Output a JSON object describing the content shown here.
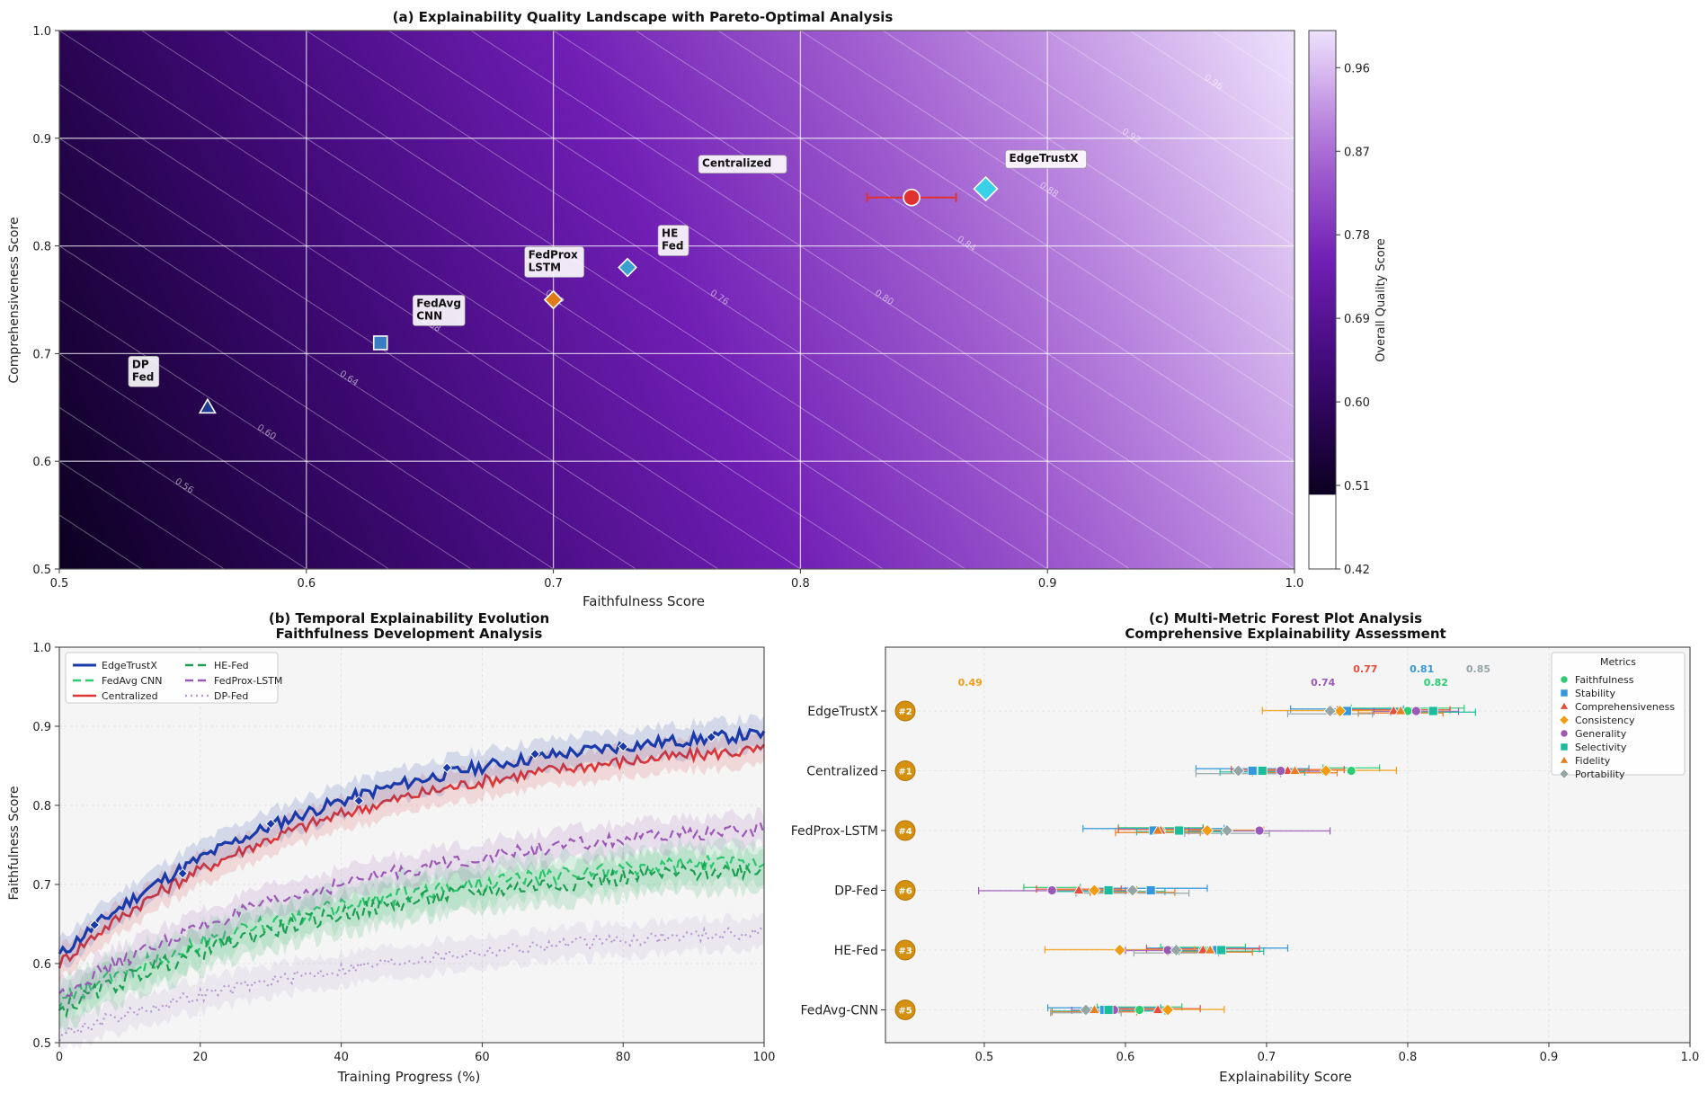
{
  "chart_data": [
    {
      "type": "heatmap",
      "title": "(a) Explainability Quality Landscape with Pareto-Optimal Analysis",
      "xlabel": "Faithfulness Score",
      "ylabel": "Comprehensiveness Score",
      "xlim": [
        0.5,
        1.0
      ],
      "ylim": [
        0.5,
        1.0
      ],
      "xticks": [
        0.5,
        0.6,
        0.7,
        0.8,
        0.9,
        1.0
      ],
      "yticks": [
        0.5,
        0.6,
        0.7,
        0.8,
        0.9,
        1.0
      ],
      "grid": true,
      "colorbar": {
        "label": "Overall Quality Score",
        "ticks": [
          0.42,
          0.51,
          0.6,
          0.69,
          0.78,
          0.87,
          0.96
        ],
        "min": 0.42,
        "max": 1.0,
        "shaded_min": 0.5
      },
      "contour_labels": [
        "0.56",
        "0.60",
        "0.64",
        "0.68",
        "0.72",
        "0.76",
        "0.80",
        "0.84",
        "0.88",
        "0.92",
        "0.96"
      ],
      "points": [
        {
          "label": "DP\nFed",
          "x": 0.56,
          "y": 0.65,
          "marker": "triangle",
          "color": "#1f3a93"
        },
        {
          "label": "FedAvg\nCNN",
          "x": 0.63,
          "y": 0.71,
          "marker": "square",
          "color": "#3a7dc0"
        },
        {
          "label": "FedProx\nLSTM",
          "x": 0.7,
          "y": 0.75,
          "marker": "diamond",
          "color": "#e07b1a"
        },
        {
          "label": "HE\nFed",
          "x": 0.73,
          "y": 0.78,
          "marker": "diamond",
          "color": "#3aa0d0"
        },
        {
          "label": "Centralized",
          "x": 0.845,
          "y": 0.845,
          "marker": "circle",
          "color": "#e03030",
          "xerr": [
            0.827,
            0.863
          ]
        },
        {
          "label": "EdgeTrustX",
          "x": 0.875,
          "y": 0.853,
          "marker": "diamond",
          "color": "#3ad0e8"
        }
      ]
    },
    {
      "type": "line",
      "title": "(b) Temporal Explainability Evolution",
      "subtitle": "Faithfulness Development Analysis",
      "xlabel": "Training Progress (%)",
      "ylabel": "Faithfulness Score",
      "xlim": [
        0,
        100
      ],
      "ylim": [
        0.5,
        1.0
      ],
      "xticks": [
        0,
        20,
        40,
        60,
        80,
        100
      ],
      "yticks": [
        0.5,
        0.6,
        0.7,
        0.8,
        0.9,
        1.0
      ],
      "grid": true,
      "legend_position": "top-left",
      "series": [
        {
          "name": "EdgeTrustX",
          "start": 0.61,
          "end": 0.89,
          "rate": 2.6,
          "band": 0.02,
          "noise": 0.008,
          "color": "#1a3aaa",
          "dash": "",
          "width": 3.2,
          "markers": true
        },
        {
          "name": "Centralized",
          "start": 0.6,
          "end": 0.87,
          "rate": 2.6,
          "band": 0.02,
          "noise": 0.008,
          "color": "#e03535",
          "dash": "",
          "width": 2.6
        },
        {
          "name": "FedProx-LSTM",
          "start": 0.56,
          "end": 0.77,
          "rate": 2.3,
          "band": 0.02,
          "noise": 0.009,
          "color": "#9b59b6",
          "dash": "9,5",
          "width": 2.2
        },
        {
          "name": "FedAvg CNN",
          "start": 0.55,
          "end": 0.73,
          "rate": 2.4,
          "band": 0.025,
          "noise": 0.011,
          "color": "#2ecc71",
          "dash": "9,5",
          "width": 2.2
        },
        {
          "name": "HE-Fed",
          "start": 0.54,
          "end": 0.72,
          "rate": 2.4,
          "band": 0.025,
          "noise": 0.011,
          "color": "#1e9e52",
          "dash": "9,5",
          "width": 2.2
        },
        {
          "name": "DP-Fed",
          "start": 0.51,
          "end": 0.64,
          "rate": 2.0,
          "band": 0.02,
          "noise": 0.008,
          "color": "#b79bd0",
          "dash": "2,4",
          "width": 2.2
        }
      ]
    },
    {
      "type": "scatter",
      "title": "(c) Multi-Metric Forest Plot Analysis",
      "subtitle": "Comprehensive Explainability Assessment",
      "xlabel": "Explainability Score",
      "xlim": [
        0.43,
        1.0
      ],
      "xticks": [
        0.5,
        0.6,
        0.7,
        0.8,
        0.9,
        1.0
      ],
      "grid": true,
      "legend_title": "Metrics",
      "legend_position": "top-right",
      "metrics": [
        {
          "name": "Faithfulness",
          "marker": "circle",
          "color": "#2ecc71"
        },
        {
          "name": "Stability",
          "marker": "square",
          "color": "#3498db"
        },
        {
          "name": "Comprehensiveness",
          "marker": "triangle",
          "color": "#e74c3c"
        },
        {
          "name": "Consistency",
          "marker": "diamond",
          "color": "#f39c12"
        },
        {
          "name": "Generality",
          "marker": "circle",
          "color": "#9b59b6"
        },
        {
          "name": "Selectivity",
          "marker": "square",
          "color": "#1abc9c"
        },
        {
          "name": "Fidelity",
          "marker": "triangle",
          "color": "#e67e22"
        },
        {
          "name": "Portability",
          "marker": "diamond",
          "color": "#95a5a6"
        }
      ],
      "categories": [
        "EdgeTrustX",
        "Centralized",
        "FedProx-LSTM",
        "DP-Fed",
        "HE-Fed",
        "FedAvg-CNN"
      ],
      "ranks": [
        "#2",
        "#1",
        "#4",
        "#6",
        "#3",
        "#5"
      ],
      "values": [
        [
          0.8,
          0.757,
          0.79,
          0.752,
          0.806,
          0.818,
          0.795,
          0.745
        ],
        [
          0.76,
          0.69,
          0.715,
          0.742,
          0.71,
          0.697,
          0.72,
          0.68
        ],
        [
          0.625,
          0.62,
          0.625,
          0.658,
          0.695,
          0.638,
          0.623,
          0.672
        ],
        [
          0.548,
          0.618,
          0.567,
          0.578,
          0.548,
          0.588,
          0.605,
          0.605
        ],
        [
          0.655,
          0.665,
          0.655,
          0.596,
          0.63,
          0.668,
          0.66,
          0.636
        ],
        [
          0.61,
          0.585,
          0.623,
          0.63,
          0.592,
          0.588,
          0.578,
          0.572
        ]
      ],
      "errors": [
        [
          0.04,
          0.04,
          0.04,
          0.055,
          0.03,
          0.03,
          0.03,
          0.03
        ],
        [
          0.02,
          0.04,
          0.04,
          0.05,
          0.03,
          0.03,
          0.03,
          0.03
        ],
        [
          0.03,
          0.05,
          0.03,
          0.04,
          0.05,
          0.03,
          0.03,
          0.03
        ],
        [
          0.02,
          0.04,
          0.03,
          0.03,
          0.052,
          0.04,
          0.03,
          0.04
        ],
        [
          0.03,
          0.05,
          0.04,
          0.053,
          0.03,
          0.03,
          0.03,
          0.03
        ],
        [
          0.03,
          0.04,
          0.03,
          0.04,
          0.03,
          0.04,
          0.03,
          0.025
        ]
      ],
      "averages": [
        {
          "value": "0.49",
          "color": "#f39c12"
        },
        {
          "value": "0.77",
          "color": "#e74c3c"
        },
        {
          "value": "0.81",
          "color": "#3498db"
        },
        {
          "value": "0.85",
          "color": "#95a5a6"
        },
        {
          "value": "0.74",
          "color": "#9b59b6"
        },
        {
          "value": "0.82",
          "color": "#2ecc71"
        }
      ]
    }
  ]
}
